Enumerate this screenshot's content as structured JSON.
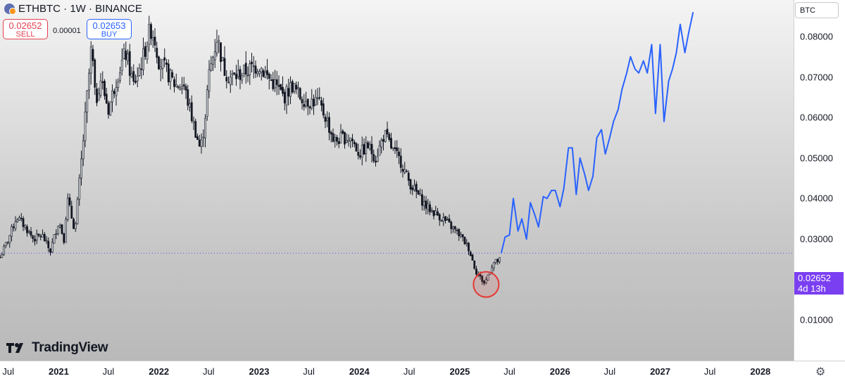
{
  "header": {
    "title": "ETHBTC · 1W · BINANCE",
    "sell_price": "0.02652",
    "sell_label": "SELL",
    "spread": "0.00001",
    "buy_price": "0.02653",
    "buy_label": "BUY",
    "currency": "BTC"
  },
  "current_price": {
    "value": "0.02652",
    "countdown": "4d 13h"
  },
  "branding": "TradingView",
  "chart_data": {
    "type": "line",
    "title": "ETHBTC · 1W · BINANCE",
    "xlabel": "",
    "ylabel": "",
    "ylim": [
      0.0,
      0.089
    ],
    "xlim": [
      "2020-06-01",
      "2028-05-01"
    ],
    "y_ticks": [
      "0.08000",
      "0.07000",
      "0.06000",
      "0.05000",
      "0.04000",
      "0.03000",
      "0.02000",
      "0.01000"
    ],
    "x_ticks": [
      "Jul",
      "2021",
      "Jul",
      "2022",
      "Jul",
      "2023",
      "Jul",
      "2024",
      "Jul",
      "2025",
      "Jul",
      "2026",
      "Jul",
      "2027",
      "Jul",
      "2028"
    ],
    "current_price_line": 0.02652,
    "highlight_circle": {
      "x": "2025-04-07",
      "y": 0.0188,
      "color": "#e53935"
    },
    "grid": false,
    "series": [
      {
        "kind": "candlestick",
        "color": "#131722",
        "x": [
          "2020-06-01",
          "2020-07-01",
          "2020-08-01",
          "2020-09-01",
          "2020-10-01",
          "2020-11-01",
          "2020-12-01",
          "2021-01-01",
          "2021-01-20",
          "2021-02-01",
          "2021-03-01",
          "2021-04-01",
          "2021-05-01",
          "2021-05-15",
          "2021-06-01",
          "2021-07-01",
          "2021-08-01",
          "2021-09-01",
          "2021-10-01",
          "2021-11-01",
          "2021-12-01",
          "2021-12-15",
          "2022-01-01",
          "2022-02-01",
          "2022-03-01",
          "2022-04-01",
          "2022-05-01",
          "2022-06-01",
          "2022-06-15",
          "2022-07-01",
          "2022-08-01",
          "2022-08-25",
          "2022-09-15",
          "2022-10-01",
          "2022-11-01",
          "2022-12-01",
          "2023-01-01",
          "2023-02-01",
          "2023-03-01",
          "2023-04-01",
          "2023-05-01",
          "2023-06-01",
          "2023-07-01",
          "2023-08-01",
          "2023-09-01",
          "2023-10-01",
          "2023-11-01",
          "2023-12-01",
          "2024-01-01",
          "2024-02-01",
          "2024-03-01",
          "2024-04-01",
          "2024-05-01",
          "2024-06-01",
          "2024-07-01",
          "2024-08-01",
          "2024-09-01",
          "2024-10-01",
          "2024-11-01",
          "2024-12-01",
          "2025-01-01",
          "2025-02-01",
          "2025-03-01",
          "2025-04-01",
          "2025-05-01",
          "2025-06-01"
        ],
        "values": [
          0.0255,
          0.03,
          0.0355,
          0.033,
          0.03,
          0.031,
          0.027,
          0.0345,
          0.03,
          0.04,
          0.032,
          0.055,
          0.078,
          0.063,
          0.07,
          0.062,
          0.07,
          0.076,
          0.068,
          0.074,
          0.082,
          0.08,
          0.074,
          0.071,
          0.068,
          0.068,
          0.06,
          0.052,
          0.058,
          0.07,
          0.08,
          0.072,
          0.07,
          0.07,
          0.071,
          0.072,
          0.073,
          0.07,
          0.068,
          0.065,
          0.068,
          0.065,
          0.064,
          0.064,
          0.06,
          0.054,
          0.055,
          0.055,
          0.051,
          0.053,
          0.05,
          0.056,
          0.052,
          0.049,
          0.044,
          0.041,
          0.038,
          0.0365,
          0.035,
          0.033,
          0.031,
          0.028,
          0.022,
          0.019,
          0.024,
          0.025
        ]
      },
      {
        "kind": "projection",
        "color": "#2962ff",
        "x": [
          "2025-06-01",
          "2025-06-15",
          "2025-07-01",
          "2025-07-15",
          "2025-08-01",
          "2025-08-15",
          "2025-09-01",
          "2025-09-15",
          "2025-10-01",
          "2025-10-15",
          "2025-11-01",
          "2025-11-15",
          "2025-12-01",
          "2025-12-15",
          "2026-01-01",
          "2026-01-15",
          "2026-02-01",
          "2026-02-15",
          "2026-03-01",
          "2026-03-15",
          "2026-04-01",
          "2026-04-15",
          "2026-05-01",
          "2026-05-15",
          "2026-06-01",
          "2026-06-15",
          "2026-07-01",
          "2026-07-15",
          "2026-08-01",
          "2026-08-15",
          "2026-09-01",
          "2026-09-15",
          "2026-10-01",
          "2026-10-15",
          "2026-11-01",
          "2026-11-15",
          "2026-12-01",
          "2026-12-15",
          "2027-01-01",
          "2027-01-15",
          "2027-02-01",
          "2027-02-15",
          "2027-03-01",
          "2027-03-15",
          "2027-04-01",
          "2027-04-15",
          "2027-05-01"
        ],
        "values": [
          0.0265,
          0.0305,
          0.031,
          0.04,
          0.032,
          0.035,
          0.03,
          0.039,
          0.036,
          0.033,
          0.0405,
          0.04,
          0.042,
          0.042,
          0.038,
          0.0425,
          0.0525,
          0.0525,
          0.041,
          0.05,
          0.046,
          0.042,
          0.0455,
          0.055,
          0.057,
          0.051,
          0.055,
          0.059,
          0.062,
          0.067,
          0.071,
          0.075,
          0.072,
          0.071,
          0.074,
          0.071,
          0.078,
          0.061,
          0.078,
          0.059,
          0.069,
          0.072,
          0.076,
          0.083,
          0.076,
          0.081,
          0.086
        ]
      }
    ]
  }
}
